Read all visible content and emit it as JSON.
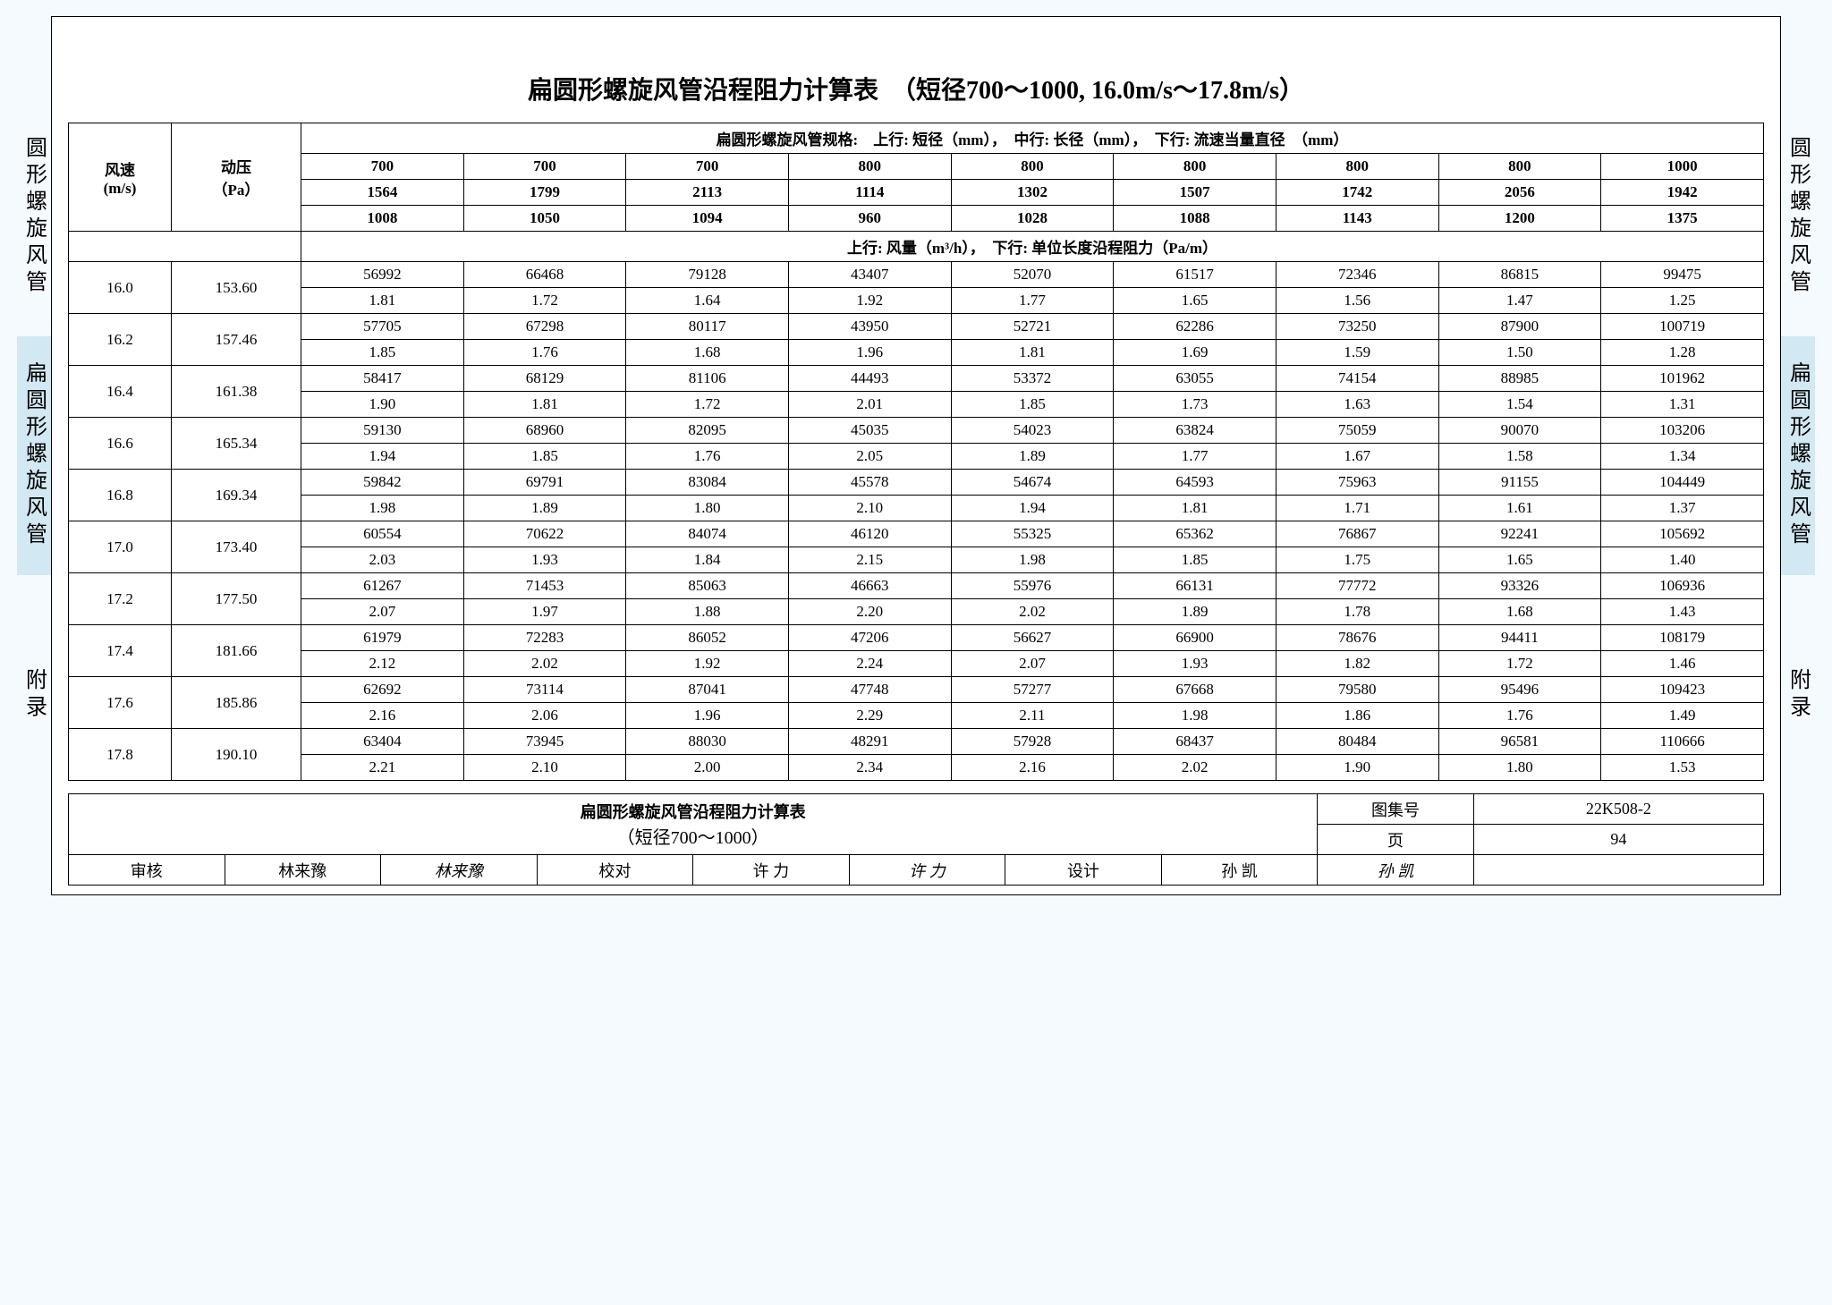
{
  "title": "扁圆形螺旋风管沿程阻力计算表　（短径700～1000, 16.0m/s～17.8m/s）",
  "side": {
    "a": "圆形螺旋风管",
    "b": "扁圆形螺旋风管",
    "c": "附录"
  },
  "head": {
    "speed": "风速\n(m/s)",
    "press": "动压\n（Pa）",
    "spec": "扁圆形螺旋风管规格:　上行: 短径（mm），　中行: 长径（mm），　下行: 流速当量直径　（mm）",
    "row_short": [
      "700",
      "700",
      "700",
      "800",
      "800",
      "800",
      "800",
      "800",
      "1000"
    ],
    "row_long": [
      "1564",
      "1799",
      "2113",
      "1114",
      "1302",
      "1507",
      "1742",
      "2056",
      "1942"
    ],
    "row_eq": [
      "1008",
      "1050",
      "1094",
      "960",
      "1028",
      "1088",
      "1143",
      "1200",
      "1375"
    ],
    "sub": "上行: 风量（m³/h），　下行: 单位长度沿程阻力（Pa/m）"
  },
  "rows": [
    {
      "v": "16.0",
      "p": "153.60",
      "q": [
        "56992",
        "66468",
        "79128",
        "43407",
        "52070",
        "61517",
        "72346",
        "86815",
        "99475"
      ],
      "r": [
        "1.81",
        "1.72",
        "1.64",
        "1.92",
        "1.77",
        "1.65",
        "1.56",
        "1.47",
        "1.25"
      ]
    },
    {
      "v": "16.2",
      "p": "157.46",
      "q": [
        "57705",
        "67298",
        "80117",
        "43950",
        "52721",
        "62286",
        "73250",
        "87900",
        "100719"
      ],
      "r": [
        "1.85",
        "1.76",
        "1.68",
        "1.96",
        "1.81",
        "1.69",
        "1.59",
        "1.50",
        "1.28"
      ]
    },
    {
      "v": "16.4",
      "p": "161.38",
      "q": [
        "58417",
        "68129",
        "81106",
        "44493",
        "53372",
        "63055",
        "74154",
        "88985",
        "101962"
      ],
      "r": [
        "1.90",
        "1.81",
        "1.72",
        "2.01",
        "1.85",
        "1.73",
        "1.63",
        "1.54",
        "1.31"
      ]
    },
    {
      "v": "16.6",
      "p": "165.34",
      "q": [
        "59130",
        "68960",
        "82095",
        "45035",
        "54023",
        "63824",
        "75059",
        "90070",
        "103206"
      ],
      "r": [
        "1.94",
        "1.85",
        "1.76",
        "2.05",
        "1.89",
        "1.77",
        "1.67",
        "1.58",
        "1.34"
      ]
    },
    {
      "v": "16.8",
      "p": "169.34",
      "q": [
        "59842",
        "69791",
        "83084",
        "45578",
        "54674",
        "64593",
        "75963",
        "91155",
        "104449"
      ],
      "r": [
        "1.98",
        "1.89",
        "1.80",
        "2.10",
        "1.94",
        "1.81",
        "1.71",
        "1.61",
        "1.37"
      ]
    },
    {
      "v": "17.0",
      "p": "173.40",
      "q": [
        "60554",
        "70622",
        "84074",
        "46120",
        "55325",
        "65362",
        "76867",
        "92241",
        "105692"
      ],
      "r": [
        "2.03",
        "1.93",
        "1.84",
        "2.15",
        "1.98",
        "1.85",
        "1.75",
        "1.65",
        "1.40"
      ]
    },
    {
      "v": "17.2",
      "p": "177.50",
      "q": [
        "61267",
        "71453",
        "85063",
        "46663",
        "55976",
        "66131",
        "77772",
        "93326",
        "106936"
      ],
      "r": [
        "2.07",
        "1.97",
        "1.88",
        "2.20",
        "2.02",
        "1.89",
        "1.78",
        "1.68",
        "1.43"
      ]
    },
    {
      "v": "17.4",
      "p": "181.66",
      "q": [
        "61979",
        "72283",
        "86052",
        "47206",
        "56627",
        "66900",
        "78676",
        "94411",
        "108179"
      ],
      "r": [
        "2.12",
        "2.02",
        "1.92",
        "2.24",
        "2.07",
        "1.93",
        "1.82",
        "1.72",
        "1.46"
      ]
    },
    {
      "v": "17.6",
      "p": "185.86",
      "q": [
        "62692",
        "73114",
        "87041",
        "47748",
        "57277",
        "67668",
        "79580",
        "95496",
        "109423"
      ],
      "r": [
        "2.16",
        "2.06",
        "1.96",
        "2.29",
        "2.11",
        "1.98",
        "1.86",
        "1.76",
        "1.49"
      ]
    },
    {
      "v": "17.8",
      "p": "190.10",
      "q": [
        "63404",
        "73945",
        "88030",
        "48291",
        "57928",
        "68437",
        "80484",
        "96581",
        "110666"
      ],
      "r": [
        "2.21",
        "2.10",
        "2.00",
        "2.34",
        "2.16",
        "2.02",
        "1.90",
        "1.80",
        "1.53"
      ]
    }
  ],
  "footer": {
    "ftitle": "扁圆形螺旋风管沿程阻力计算表",
    "fsub": "（短径700～1000）",
    "labels": {
      "shenhe": "审核",
      "jiaodui": "校对",
      "sheji": "设计",
      "tujihao": "图集号",
      "ye": "页"
    },
    "names": {
      "shenhe": "林来豫",
      "shenhe_sig": "林来豫",
      "jiaodui": "许 力",
      "jiaodui_sig": "许 力",
      "sheji": "孙 凯",
      "sheji_sig": "孙 凯"
    },
    "tujihao": "22K508-2",
    "page": "94"
  }
}
